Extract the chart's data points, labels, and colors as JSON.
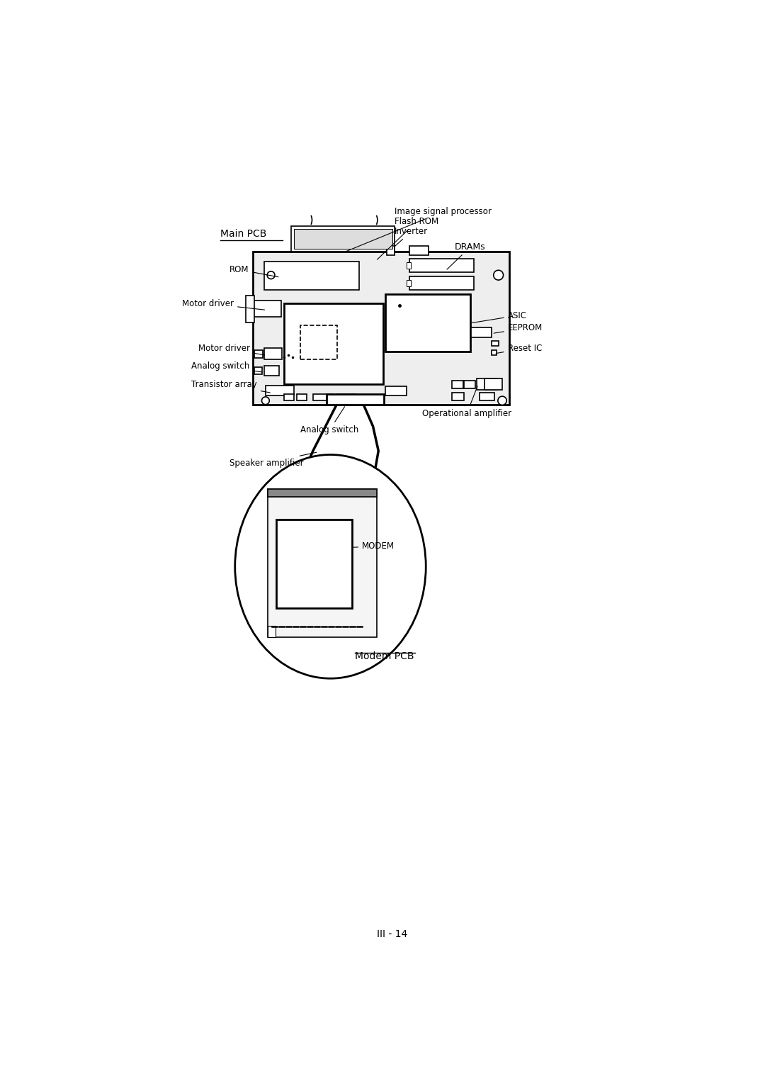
{
  "fig_width": 10.8,
  "fig_height": 15.28,
  "bg_color": "#ffffff",
  "title_text": "III - 14",
  "main_pcb_label": "Main PCB",
  "modem_pcb_label": "Modem PCB",
  "labels": {
    "image_signal_processor": "Image signal processor",
    "flash_rom": "Flash ROM",
    "inverter": "Inverter",
    "drams": "DRAMs",
    "rom": "ROM",
    "asic": "ASIC",
    "motor_driver_1": "Motor driver",
    "motor_driver_2": "Motor driver",
    "analog_switch_1": "Analog switch",
    "analog_switch_2": "Analog switch",
    "transistor_array": "Transistor array",
    "eeprom": "EEPROM",
    "reset_ic": "Reset IC",
    "operational_amplifier": "Operational amplifier",
    "speaker_amplifier": "Speaker amplifier",
    "modem": "MODEM"
  }
}
